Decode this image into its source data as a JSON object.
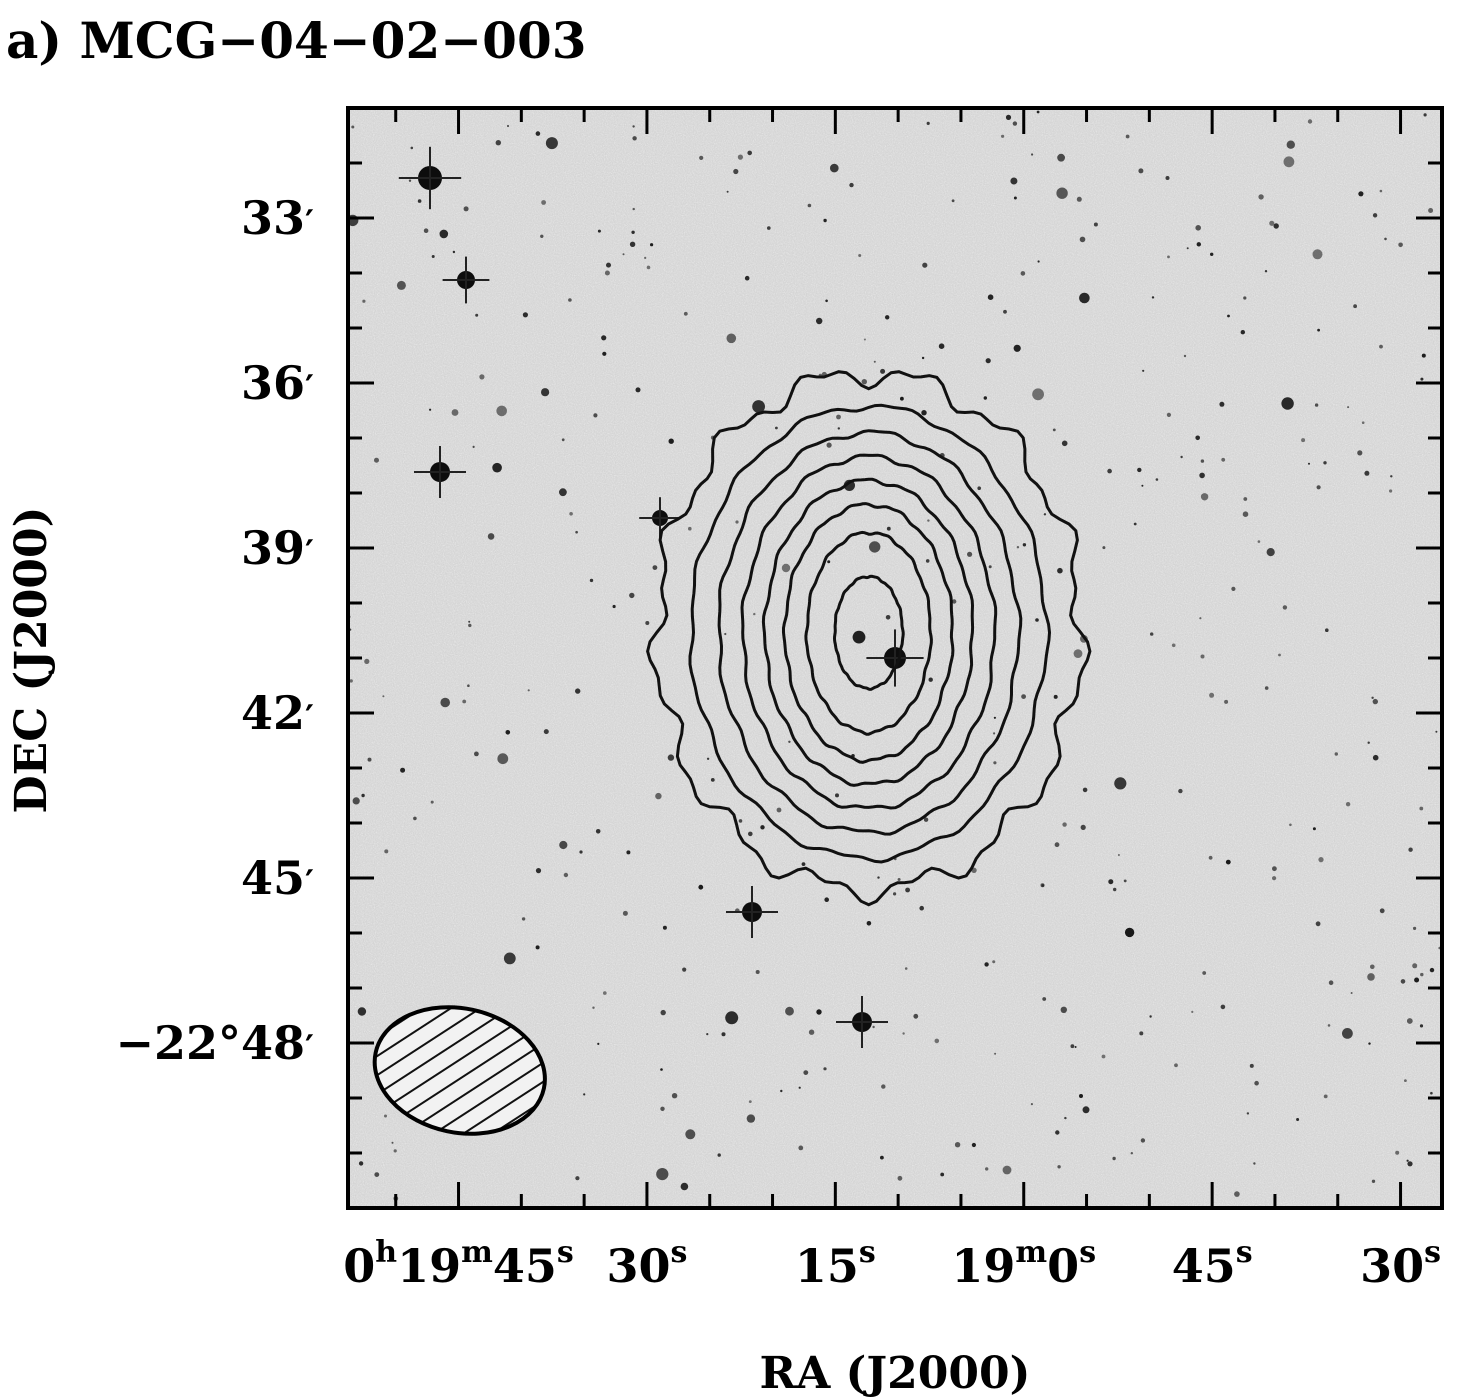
{
  "chart_data": {
    "type": "contour",
    "title": "a) MCG−04−02−003",
    "xlabel": "RA (J2000)",
    "ylabel": "DEC (J2000)",
    "x_ticks": [
      {
        "h": "0",
        "m": "19",
        "s": "45",
        "value_sec": 45
      },
      {
        "s": "30",
        "value_sec": 30
      },
      {
        "s": "15",
        "value_sec": 15
      },
      {
        "m": "19",
        "s": "0",
        "value_sec": 0
      },
      {
        "s": "45",
        "value_sec": -15
      },
      {
        "s": "30",
        "value_sec": -30
      }
    ],
    "y_ticks": [
      {
        "label": "33",
        "prefix": "",
        "value_arcmin": -33
      },
      {
        "label": "36",
        "prefix": "",
        "value_arcmin": -36
      },
      {
        "label": "39",
        "prefix": "",
        "value_arcmin": -39
      },
      {
        "label": "42",
        "prefix": "",
        "value_arcmin": -42
      },
      {
        "label": "45",
        "prefix": "",
        "value_arcmin": -45
      },
      {
        "label": "48",
        "prefix": "−22°",
        "value_arcmin": -48
      }
    ],
    "xlim_sec": [
      53.8,
      -33.3
    ],
    "ylim_arcmin": [
      -31.0,
      -51.0
    ],
    "source_center": {
      "ra_sec": 12.5,
      "dec_arcmin": -40.5
    },
    "contour_levels": 8,
    "beam": {
      "ra_sec": 44.9,
      "dec_arcmin": -48.5,
      "shape": "hatched-ellipse"
    },
    "background": "optical-greyscale",
    "grid": false
  },
  "colors": {
    "axes": "#000000",
    "background_grey": "#cfcfcf",
    "contours": "#111111"
  }
}
